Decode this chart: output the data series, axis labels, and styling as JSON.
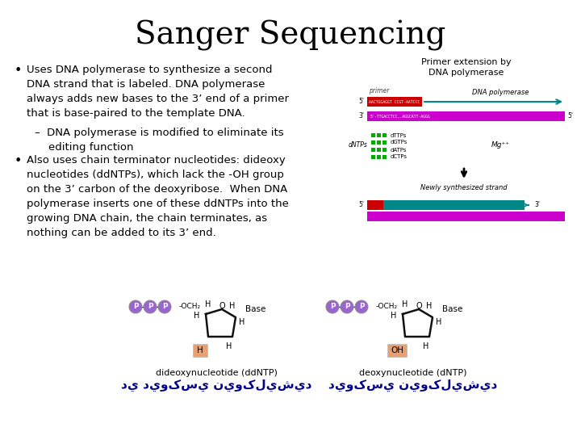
{
  "title": "Sanger Sequencing",
  "title_fontsize": 28,
  "title_font": "DejaVu Serif",
  "bg_color": "#ffffff",
  "bullet1_main": "Uses DNA polymerase to synthesize a second\nDNA strand that is labeled. DNA polymerase\nalways adds new bases to the 3’ end of a primer\nthat is base-paired to the template DNA.",
  "bullet1_sub": "–  DNA polymerase is modified to eliminate its\n    editing function",
  "bullet2_main": "Also uses chain terminator nucleotides: dideoxy\nnucleotides (ddNTPs), which lack the -OH group\non the 3’ carbon of the deoxyribose.  When DNA\npolymerase inserts one of these ddNTPs into the\ngrowing DNA chain, the chain terminates, as\nnothing can be added to its 3’ end.",
  "primer_ext_title": "Primer extension by\nDNA polymerase",
  "ddntp_label": "dideoxynucleotide (ddNTP)",
  "ddntp_arabic": "دي ديوکسي نيوکليشيد",
  "dntp_label": "deoxynucleotide (dNTP)",
  "dntp_arabic": "ديوکسي نيوکليشيد",
  "text_color": "#000000",
  "arabic_color": "#00008B",
  "bullet_fontsize": 9.5,
  "primer_box_color": "#cc0000",
  "template_bar_color": "#cc00cc",
  "new_strand_color": "#008888",
  "dntps_color": "#00aa00",
  "p_circle_color": "#9966cc",
  "highlight_color": "#e8a070",
  "figsize": [
    7.2,
    5.4
  ],
  "dpi": 100
}
